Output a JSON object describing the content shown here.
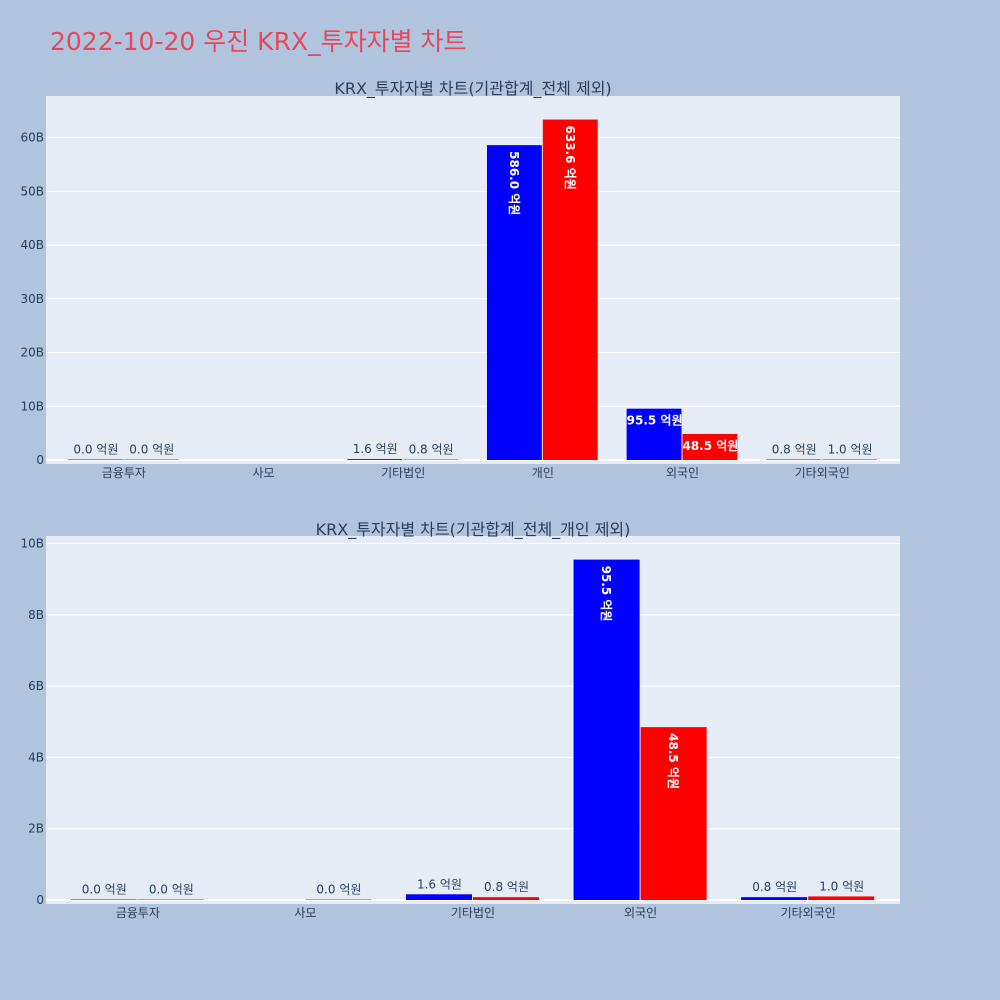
{
  "page_title": "2022-10-20 우진 KRX_투자자별 차트",
  "colors": {
    "background": "#b0c4de",
    "plot_bg": "#e5ecf6",
    "series_a": "#0000ff",
    "series_b": "#ff0000",
    "title": "#e8475a",
    "text": "#2a3f5f"
  },
  "chart_data": [
    {
      "type": "bar",
      "title": "KRX_투자자별 차트(기관합계_전체 제외)",
      "categories": [
        "금융투자",
        "사모",
        "기타법인",
        "개인",
        "외국인",
        "기타외국인"
      ],
      "series": [
        {
          "values": [
            0.0,
            null,
            0.16,
            58.6,
            9.55,
            0.08
          ],
          "labels": [
            "0.0 억원",
            "",
            "1.6 억원",
            "586.0 억원",
            "95.5 억원",
            "0.8 억원"
          ]
        },
        {
          "values": [
            0.0,
            null,
            0.08,
            63.36,
            4.85,
            0.1
          ],
          "labels": [
            "0.0 억원",
            "",
            "0.8 억원",
            "633.6 억원",
            "48.5 억원",
            "1.0 억원"
          ]
        }
      ],
      "yunit": "B",
      "ylim": [
        0,
        67
      ],
      "yticks": [
        0,
        10,
        20,
        30,
        40,
        50,
        60
      ],
      "ytick_labels": [
        "0",
        "10B",
        "20B",
        "30B",
        "40B",
        "50B",
        "60B"
      ],
      "grid": true,
      "legend": "none"
    },
    {
      "type": "bar",
      "title": "KRX_투자자별 차트(기관합계_전체_개인 제외)",
      "categories": [
        "금융투자",
        "사모",
        "기타법인",
        "외국인",
        "기타외국인"
      ],
      "series": [
        {
          "values": [
            0.0,
            null,
            0.16,
            9.55,
            0.08
          ],
          "labels": [
            "0.0 억원",
            "",
            "1.6 억원",
            "95.5 억원",
            "0.8 억원"
          ]
        },
        {
          "values": [
            0.0,
            0.0,
            0.08,
            4.85,
            0.1
          ],
          "labels": [
            "0.0 억원",
            "0.0 억원",
            "0.8 억원",
            "48.5 억원",
            "1.0 억원"
          ]
        }
      ],
      "yunit": "B",
      "ylim": [
        0,
        10.1
      ],
      "yticks": [
        0,
        2,
        4,
        6,
        8,
        10
      ],
      "ytick_labels": [
        "0",
        "2B",
        "4B",
        "6B",
        "8B",
        "10B"
      ],
      "grid": true,
      "legend": "none"
    }
  ]
}
